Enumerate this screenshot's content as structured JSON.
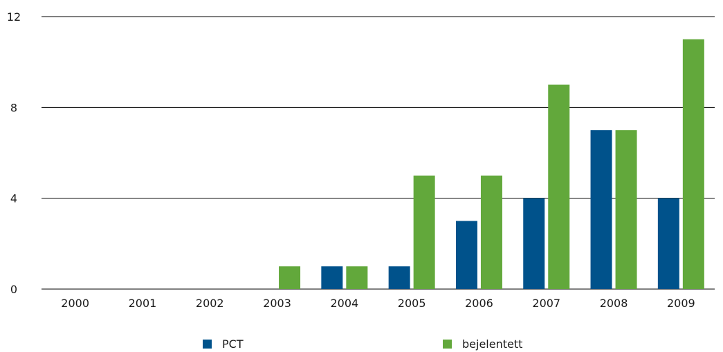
{
  "chart_data": {
    "type": "bar",
    "title": "",
    "xlabel": "",
    "ylabel": "",
    "categories": [
      "2000",
      "2001",
      "2002",
      "2003",
      "2004",
      "2005",
      "2006",
      "2007",
      "2008",
      "2009"
    ],
    "series": [
      {
        "name": "PCT",
        "values": [
          0,
          0,
          0,
          0,
          1,
          1,
          3,
          4,
          7,
          4
        ],
        "color": "#00528b"
      },
      {
        "name": "bejelentett",
        "values": [
          0,
          0,
          0,
          1,
          1,
          5,
          5,
          9,
          7,
          11
        ],
        "color": "#62a83b"
      }
    ],
    "ylim": [
      0,
      12
    ],
    "yticks": [
      0,
      4,
      8,
      12
    ],
    "grid": true,
    "legend_position": "bottom"
  }
}
